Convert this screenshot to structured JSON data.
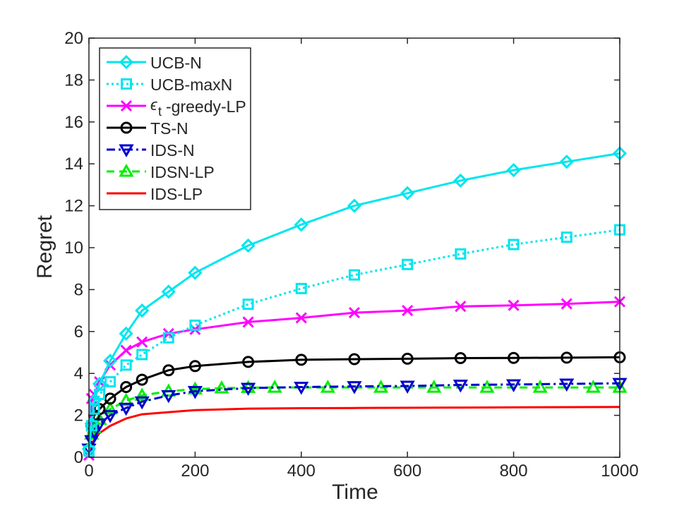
{
  "chart_data": {
    "type": "line",
    "title": "",
    "xlabel": "Time",
    "ylabel": "Regret",
    "xlim": [
      0,
      1000
    ],
    "ylim": [
      0,
      20
    ],
    "xticks": [
      0,
      200,
      400,
      600,
      800,
      1000
    ],
    "yticks": [
      0,
      2,
      4,
      6,
      8,
      10,
      12,
      14,
      16,
      18,
      20
    ],
    "xtick_labels": [
      "0",
      "200",
      "400",
      "600",
      "800",
      "1000"
    ],
    "ytick_labels": [
      "0",
      "2",
      "4",
      "6",
      "8",
      "10",
      "12",
      "14",
      "16",
      "18",
      "20"
    ],
    "legend_position": "top-left",
    "series": [
      {
        "name": "UCB-N",
        "legend_label": "UCB-N",
        "color": "#00e5ee",
        "style": "solid",
        "marker": "diamond",
        "x": [
          0,
          5,
          10,
          20,
          40,
          70,
          100,
          150,
          200,
          300,
          400,
          500,
          600,
          700,
          800,
          900,
          1000
        ],
        "y": [
          0.4,
          1.6,
          2.7,
          3.5,
          4.6,
          5.9,
          7.0,
          7.9,
          8.8,
          10.1,
          11.1,
          12.0,
          12.6,
          13.2,
          13.7,
          14.1,
          14.5
        ],
        "marker_x": [
          0,
          5,
          10,
          20,
          40,
          70,
          100,
          150,
          200,
          300,
          400,
          500,
          600,
          700,
          800,
          900,
          1000
        ]
      },
      {
        "name": "UCB-maxN",
        "legend_label": "UCB-maxN",
        "color": "#00e5ee",
        "style": "dotted",
        "marker": "square",
        "x": [
          0,
          5,
          10,
          20,
          40,
          70,
          100,
          150,
          200,
          300,
          400,
          500,
          600,
          700,
          800,
          900,
          1000
        ],
        "y": [
          0.3,
          1.5,
          2.3,
          3.0,
          3.6,
          4.4,
          4.9,
          5.7,
          6.3,
          7.3,
          8.05,
          8.7,
          9.2,
          9.7,
          10.15,
          10.5,
          10.85
        ],
        "marker_x": [
          0,
          5,
          10,
          20,
          40,
          70,
          100,
          150,
          200,
          300,
          400,
          500,
          600,
          700,
          800,
          900,
          1000
        ]
      },
      {
        "name": "epsilon_t-greedy-LP",
        "legend_label": "-greedy-LP",
        "legend_symbol": "ϵ",
        "legend_subscript": "t",
        "color": "#ff00ff",
        "style": "solid",
        "marker": "x",
        "x": [
          0,
          5,
          10,
          20,
          40,
          70,
          100,
          150,
          200,
          300,
          400,
          500,
          600,
          700,
          800,
          900,
          1000
        ],
        "y": [
          0.1,
          2.8,
          3.0,
          3.6,
          4.4,
          5.1,
          5.5,
          5.9,
          6.1,
          6.45,
          6.65,
          6.9,
          7.0,
          7.2,
          7.25,
          7.32,
          7.42
        ],
        "marker_x": [
          0,
          5,
          10,
          20,
          40,
          70,
          100,
          150,
          200,
          300,
          400,
          500,
          600,
          700,
          800,
          900,
          1000
        ]
      },
      {
        "name": "TS-N",
        "legend_label": "TS-N",
        "color": "#000000",
        "style": "solid",
        "marker": "circle",
        "x": [
          0,
          5,
          10,
          20,
          40,
          70,
          100,
          150,
          200,
          300,
          400,
          500,
          600,
          700,
          800,
          900,
          1000
        ],
        "y": [
          0.4,
          1.5,
          2.0,
          2.3,
          2.8,
          3.35,
          3.7,
          4.15,
          4.35,
          4.55,
          4.65,
          4.68,
          4.7,
          4.73,
          4.74,
          4.75,
          4.77
        ],
        "marker_x": [
          0,
          5,
          10,
          20,
          40,
          70,
          100,
          150,
          200,
          300,
          400,
          500,
          600,
          700,
          800,
          900,
          1000
        ]
      },
      {
        "name": "IDS-N",
        "legend_label": "IDS-N",
        "color": "#0000cd",
        "style": "dashdot",
        "marker": "triangle-down",
        "x": [
          0,
          5,
          10,
          20,
          40,
          70,
          100,
          150,
          200,
          300,
          400,
          500,
          600,
          700,
          800,
          900,
          1000
        ],
        "y": [
          0.4,
          0.8,
          1.2,
          1.6,
          2.0,
          2.35,
          2.65,
          2.95,
          3.15,
          3.3,
          3.35,
          3.38,
          3.4,
          3.45,
          3.47,
          3.5,
          3.53
        ],
        "marker_x": [
          0,
          5,
          10,
          20,
          40,
          70,
          100,
          150,
          200,
          300,
          400,
          500,
          600,
          700,
          800,
          900,
          1000
        ]
      },
      {
        "name": "IDSN-LP",
        "legend_label": "IDSN-LP",
        "color": "#00ee00",
        "style": "dashed",
        "marker": "triangle-up",
        "x": [
          0,
          5,
          10,
          20,
          40,
          70,
          100,
          150,
          200,
          250,
          300,
          350,
          400,
          450,
          500,
          550,
          600,
          650,
          700,
          750,
          800,
          850,
          900,
          950,
          1000
        ],
        "y": [
          0.5,
          1.1,
          1.4,
          1.8,
          2.3,
          2.7,
          2.95,
          3.15,
          3.25,
          3.3,
          3.32,
          3.33,
          3.33,
          3.33,
          3.33,
          3.33,
          3.33,
          3.33,
          3.33,
          3.33,
          3.33,
          3.33,
          3.33,
          3.33,
          3.33
        ],
        "marker_x": [
          5,
          10,
          20,
          40,
          70,
          100,
          150,
          200,
          250,
          300,
          350,
          450,
          550,
          650,
          750,
          850,
          950,
          1000
        ]
      },
      {
        "name": "IDS-LP",
        "legend_label": "IDS-LP",
        "color": "#ff0000",
        "style": "solid",
        "marker": "none",
        "x": [
          0,
          5,
          10,
          20,
          40,
          70,
          100,
          150,
          200,
          300,
          400,
          500,
          600,
          700,
          800,
          900,
          1000
        ],
        "y": [
          0.3,
          0.6,
          0.85,
          1.15,
          1.5,
          1.85,
          2.05,
          2.15,
          2.25,
          2.32,
          2.34,
          2.35,
          2.36,
          2.37,
          2.38,
          2.39,
          2.4
        ],
        "marker_x": []
      }
    ]
  }
}
